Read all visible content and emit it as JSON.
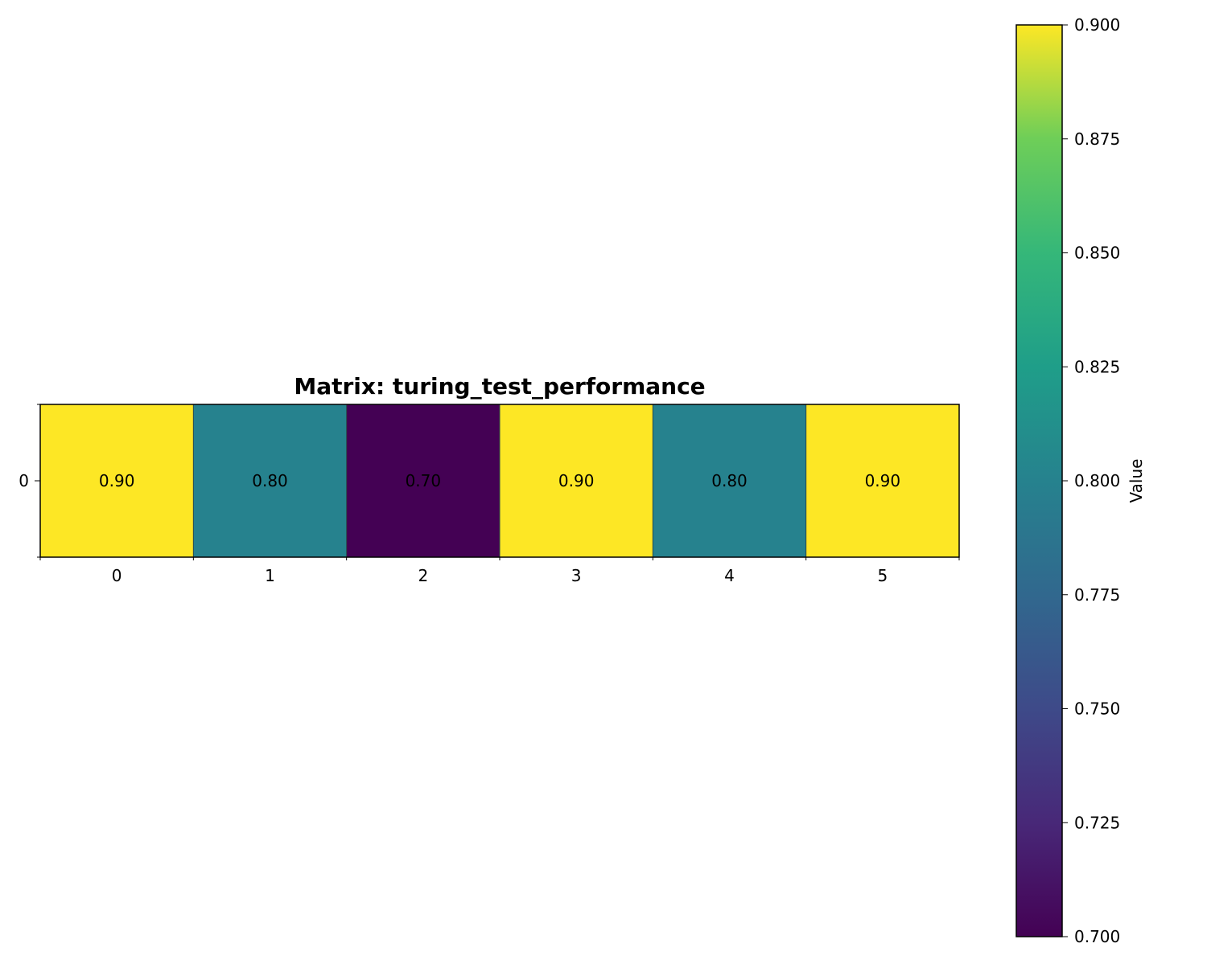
{
  "chart_data": {
    "type": "heatmap",
    "title": "Matrix: turing_test_performance",
    "rows": [
      "0"
    ],
    "columns": [
      "0",
      "1",
      "2",
      "3",
      "4",
      "5"
    ],
    "values": [
      [
        0.9,
        0.8,
        0.7,
        0.9,
        0.8,
        0.9
      ]
    ],
    "cell_labels": [
      [
        "0.90",
        "0.80",
        "0.70",
        "0.90",
        "0.80",
        "0.90"
      ]
    ],
    "colormap": "viridis",
    "vmin": 0.7,
    "vmax": 0.9,
    "colorbar": {
      "label": "Value",
      "ticks": [
        0.7,
        0.725,
        0.75,
        0.775,
        0.8,
        0.825,
        0.85,
        0.875,
        0.9
      ],
      "tick_labels": [
        "0.700",
        "0.725",
        "0.750",
        "0.775",
        "0.800",
        "0.825",
        "0.850",
        "0.875",
        "0.900"
      ]
    },
    "grid": false
  }
}
